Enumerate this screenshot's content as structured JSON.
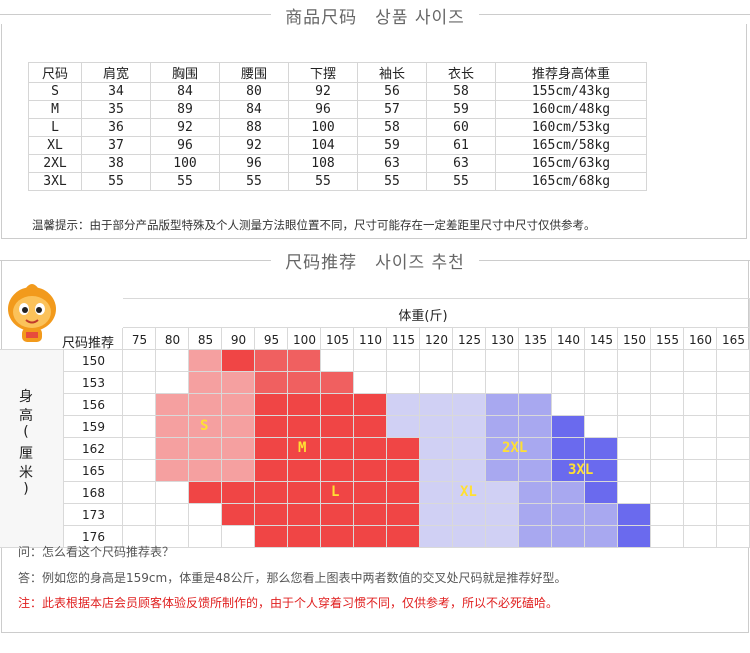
{
  "section1_title": "商品尺码　상품 사이즈",
  "section2_title": "尺码推荐　사이즈 추천",
  "size_table": {
    "headers": [
      "尺码",
      "肩宽",
      "胸围",
      "腰围",
      "下摆",
      "袖长",
      "衣长",
      "推荐身高体重"
    ],
    "rows": [
      [
        "S",
        "34",
        "84",
        "80",
        "92",
        "56",
        "58",
        "155cm/43kg"
      ],
      [
        "M",
        "35",
        "89",
        "84",
        "96",
        "57",
        "59",
        "160cm/48kg"
      ],
      [
        "L",
        "36",
        "92",
        "88",
        "100",
        "58",
        "60",
        "160cm/53kg"
      ],
      [
        "XL",
        "37",
        "96",
        "92",
        "104",
        "59",
        "61",
        "165cm/58kg"
      ],
      [
        "2XL",
        "38",
        "100",
        "96",
        "108",
        "63",
        "63",
        "165cm/63kg"
      ],
      [
        "3XL",
        "55",
        "55",
        "55",
        "55",
        "55",
        "55",
        "165cm/68kg"
      ]
    ]
  },
  "tip": "温馨提示：由于部分产品版型特殊及个人测量方法眼位置不同，尺寸可能存在一定差距里尺寸中尺寸仅供参考。",
  "chart": {
    "weight_header": "体重(斤)",
    "corner_label": "尺码推荐",
    "height_label": [
      "身",
      "高",
      "(",
      "厘",
      "米",
      ")"
    ],
    "weights": [
      "75",
      "80",
      "85",
      "90",
      "95",
      "100",
      "105",
      "110",
      "115",
      "120",
      "125",
      "130",
      "135",
      "140",
      "145",
      "150",
      "155",
      "160",
      "165"
    ],
    "heights": [
      "150",
      "153",
      "156",
      "159",
      "162",
      "165",
      "168",
      "173",
      "176"
    ],
    "zones": [
      {
        "label": "S",
        "color": "#f5a0a0"
      },
      {
        "label": "M",
        "color": "#f04545"
      },
      {
        "label": "L",
        "color": "#f04545"
      },
      {
        "label": "XL",
        "color": "#d0d0f4"
      },
      {
        "label": "2XL",
        "color": "#a8a8f0"
      },
      {
        "label": "3XL",
        "color": "#6a6aee"
      }
    ]
  },
  "qa": {
    "q": "问：怎么看这个尺码推荐表？",
    "a": "答：例如您的身高是159cm，体重是48公斤，那么您看上图表中两者数值的交叉处尺码就是推荐好型。",
    "note": "注：此表根据本店会员顾客体验反馈所制作的，由于个人穿着习惯不同，仅供参考，所以不必死磕哈。"
  }
}
